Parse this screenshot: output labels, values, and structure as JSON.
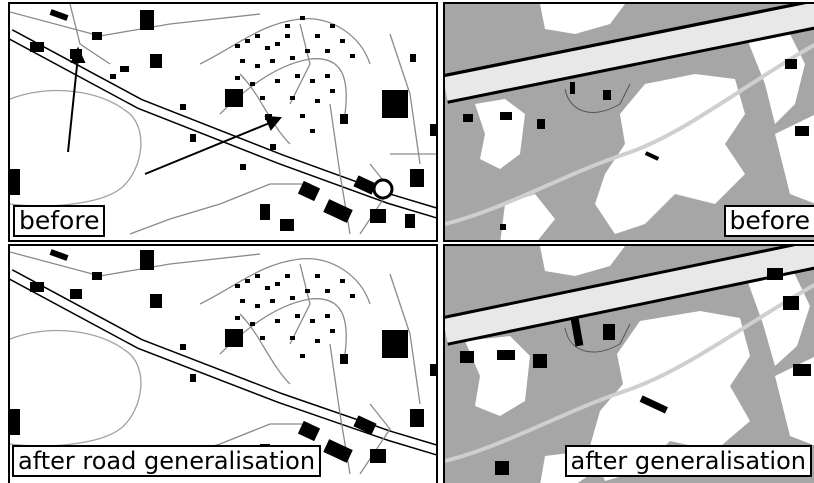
{
  "panels": {
    "top_left": {
      "label": "before",
      "style": "detailed map"
    },
    "top_right": {
      "label": "before",
      "style": "zoomed area map"
    },
    "bottom_left": {
      "label": "after road generalisation",
      "style": "detailed map"
    },
    "bottom_right": {
      "label": "after generalisation",
      "style": "zoomed area map"
    }
  },
  "colors": {
    "background_light": "#ffffff",
    "area_gray": "#a6a6a6",
    "path_gray": "#c8c8c8",
    "road_outline": "#000000",
    "road_fill": "#e8e8e8",
    "buildings": "#000000"
  },
  "icons": [
    "arrow-annotation",
    "roundabout"
  ]
}
